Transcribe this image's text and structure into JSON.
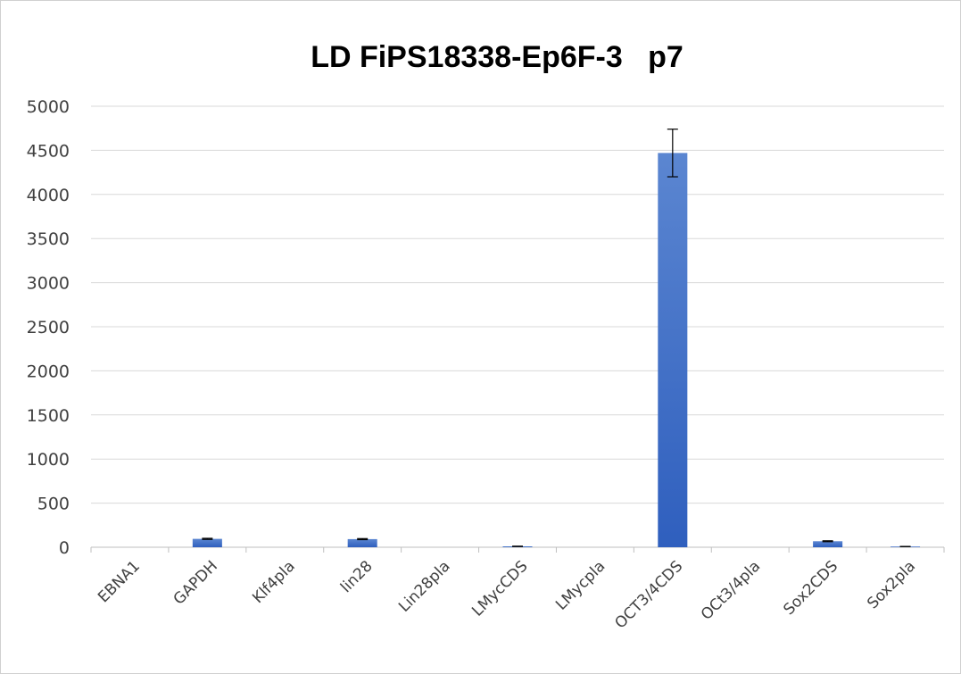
{
  "chart_data": {
    "type": "bar",
    "title": "LD FiPS18338-Ep6F-3   p7",
    "xlabel": "",
    "ylabel": "",
    "ylim": [
      0,
      5000
    ],
    "yticks": [
      0,
      500,
      1000,
      1500,
      2000,
      2500,
      3000,
      3500,
      4000,
      4500,
      5000
    ],
    "grid": true,
    "legend": "none",
    "bar_color": "#4472c4",
    "categories": [
      "EBNA1",
      "GAPDH",
      "Klf4pla",
      "lin28",
      "Lin28pla",
      "LMycCDS",
      "LMycpla",
      "OCT3/4CDS",
      "OCt3/4pla",
      "Sox2CDS",
      "Sox2pla"
    ],
    "values": [
      0,
      95,
      0,
      92,
      0,
      10,
      0,
      4470,
      0,
      68,
      8
    ],
    "errors": [
      0,
      6,
      0,
      6,
      0,
      2,
      0,
      270,
      0,
      5,
      1
    ]
  }
}
